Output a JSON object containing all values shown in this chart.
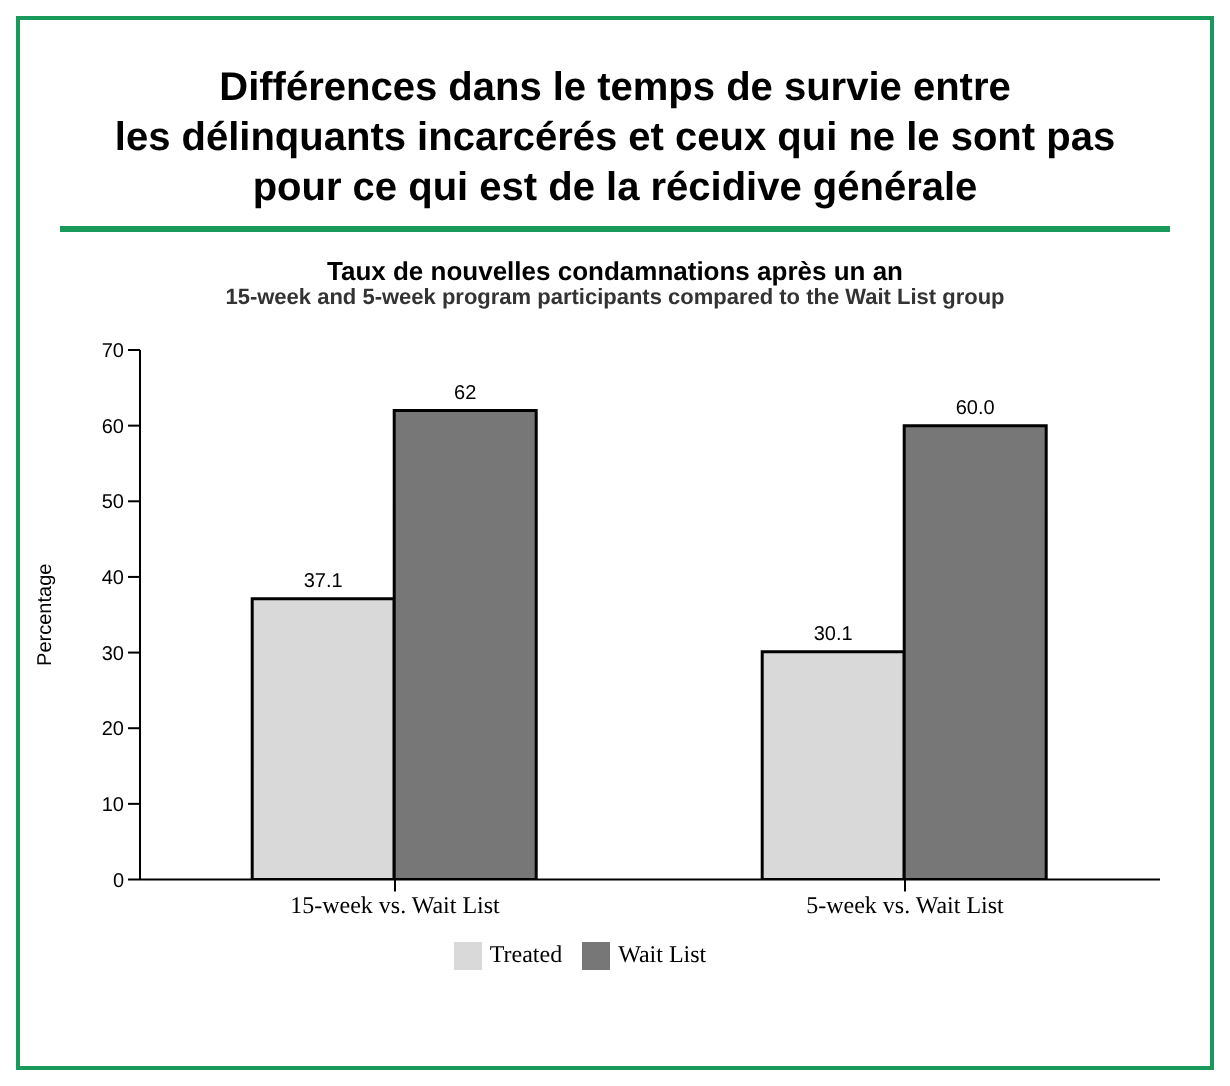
{
  "chart_data": {
    "type": "bar",
    "title": "Différences dans le temps de survie entre\nles délinquants incarcérés et ceux qui ne le sont pas\npour ce qui est de la récidive générale",
    "subtitle": "Taux de nouvelles condamnations après un an",
    "annotations": [
      "15-week and 5-week program participants compared to the Wait List group"
    ],
    "ylabel": "Percentage",
    "categories": [
      "15-week vs. Wait List",
      "5-week vs. Wait List"
    ],
    "series": [
      {
        "name": "Treated",
        "color": "#d9d9d9",
        "values": [
          37.1,
          30.1
        ],
        "value_labels": [
          "37.1",
          "30.1"
        ]
      },
      {
        "name": "Wait List",
        "color": "#777777",
        "values": [
          62,
          60
        ],
        "value_labels": [
          "62",
          "60.0"
        ]
      }
    ],
    "ylim": [
      0,
      70
    ],
    "yticks": [
      0,
      10,
      20,
      30,
      40,
      50,
      60,
      70
    ],
    "legend": "bottom"
  }
}
